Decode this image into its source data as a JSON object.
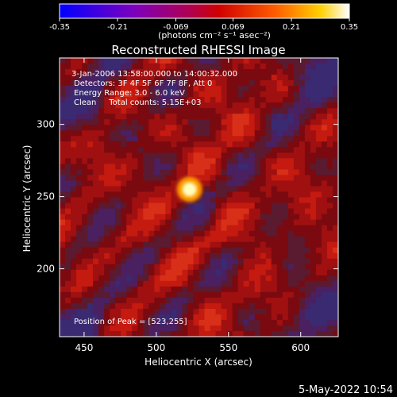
{
  "colorbar": {
    "ticks": [
      "-0.35",
      "-0.21",
      "-0.069",
      "0.069",
      "0.21",
      "0.35"
    ],
    "tick_values": [
      -0.35,
      -0.21,
      -0.069,
      0.069,
      0.21,
      0.35
    ],
    "range": [
      -0.35,
      0.35
    ],
    "units_label": "(photons cm⁻² s⁻¹ asec⁻²)"
  },
  "chart_data": {
    "type": "heatmap",
    "title": "Reconstructed RHESSI Image",
    "xlabel": "Heliocentric X (arcsec)",
    "ylabel": "Heliocentric Y (arcsec)",
    "xlim": [
      433,
      626
    ],
    "ylim": [
      153,
      346
    ],
    "x_ticks": [
      450,
      500,
      550,
      600
    ],
    "y_ticks": [
      200,
      250,
      300
    ],
    "x_tick_labels": [
      "450",
      "500",
      "550",
      "600"
    ],
    "y_tick_labels": [
      "200",
      "250",
      "300"
    ],
    "value_range": [
      -0.35,
      0.35
    ],
    "peak": {
      "x": 523,
      "y": 255,
      "value": 0.35
    },
    "colormap": "RHESSI red-temperature (blue → purple → red → yellow → white)",
    "info": {
      "time": "3-Jan-2006 13:58:00.000 to 14:00:32.000",
      "detectors": "Detectors: 3F 4F 5F 6F 7F 8F, Att 0",
      "energy": "Energy Range: 3.0 - 6.0 keV",
      "method_counts": "Clean     Total counts: 5.15E+03"
    },
    "peak_label": "Position of Peak = [523,255]",
    "grid": false,
    "legend": "colorbar-top"
  },
  "footer": {
    "date": "5-May-2022 10:54"
  },
  "colors": {
    "background": "#000000",
    "text": "#ffffff",
    "peak": "#ffffc0"
  }
}
